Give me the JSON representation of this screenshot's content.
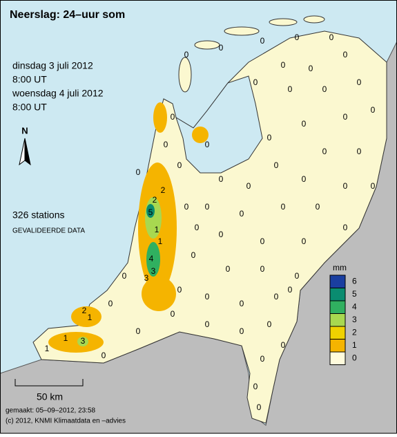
{
  "header": {
    "title": "Neerslag: 24–uur som"
  },
  "period": {
    "start_date": "dinsdag 3 juli 2012",
    "start_time": "8:00 UT",
    "end_date": "woensdag 4 juli 2012",
    "end_time": "8:00 UT"
  },
  "north": "N",
  "stations": {
    "count_label": "326 stations",
    "status": "GEVALIDEERDE DATA",
    "values": [
      2,
      2,
      5,
      1,
      1,
      4,
      3,
      3,
      2,
      1,
      3,
      1,
      1,
      0,
      0,
      0,
      0,
      0,
      0,
      0,
      0,
      0,
      0,
      0,
      0,
      0,
      0,
      0,
      0,
      0,
      0,
      0,
      0,
      0,
      0,
      0,
      0,
      0,
      0,
      0,
      0,
      0,
      0,
      0,
      0,
      0,
      0,
      0,
      0,
      0,
      0,
      0,
      0,
      0,
      0,
      0,
      0,
      0,
      0,
      0,
      0,
      0,
      0,
      0,
      0,
      0,
      0,
      0,
      0,
      0,
      0,
      0,
      0
    ]
  },
  "legend": {
    "unit": "mm",
    "ticks": [
      0,
      1,
      2,
      3,
      4,
      5,
      6
    ],
    "colors": [
      "#fffbdc",
      "#f5b400",
      "#f0d200",
      "#a8d850",
      "#30b060",
      "#0a8c70",
      "#1a3ea0"
    ]
  },
  "scale": {
    "label": "50 km"
  },
  "footer": {
    "made": "gemaakt: 05–09–2012, 23:58",
    "copyright": "(c) 2012, KNMI Klimaatdata en –advies"
  }
}
